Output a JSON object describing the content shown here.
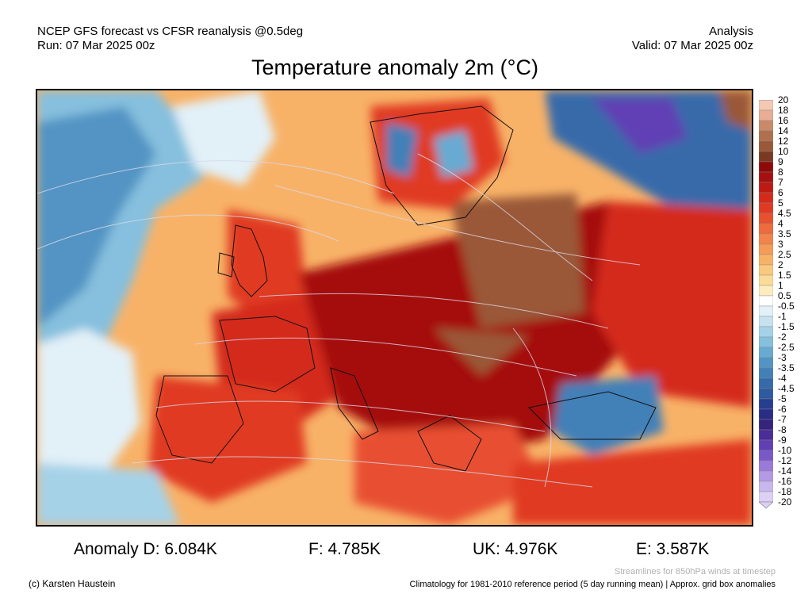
{
  "header": {
    "source_line": "NCEP GFS forecast vs CFSR reanalysis @0.5deg",
    "run_line": "Run: 07 Mar 2025 00z",
    "type_line": "Analysis",
    "valid_line": "Valid: 07 Mar 2025 00z"
  },
  "title": "Temperature anomaly 2m (°C)",
  "map": {
    "region": "Europe and North Atlantic"
  },
  "colorbar": {
    "levels": [
      "20",
      "18",
      "16",
      "14",
      "12",
      "10",
      "9",
      "8",
      "7",
      "6",
      "5",
      "4.5",
      "4",
      "3.5",
      "3",
      "2.5",
      "2",
      "1.5",
      "1",
      "0.5",
      "-0.5",
      "-1",
      "-1.5",
      "-2",
      "-2.5",
      "-3",
      "-3.5",
      "-4",
      "-4.5",
      "-5",
      "-6",
      "-7",
      "-8",
      "-9",
      "-10",
      "-12",
      "-14",
      "-16",
      "-18",
      "-20"
    ],
    "colors": [
      "#f4c9b3",
      "#e8ad93",
      "#c98a6a",
      "#b0704e",
      "#9a5838",
      "#7a3a22",
      "#8e0a0a",
      "#a51010",
      "#bd1a14",
      "#d42a1c",
      "#e03a22",
      "#e85030",
      "#ef6a3c",
      "#f3834a",
      "#f69a58",
      "#f8b268",
      "#fac87e",
      "#fbdb98",
      "#fdecbe",
      "#ffffff",
      "#e2f0f8",
      "#c6e2f0",
      "#a6d2e8",
      "#86c0de",
      "#68aad2",
      "#5294c4",
      "#4380b8",
      "#376aaa",
      "#2e5aa0",
      "#273f90",
      "#2a2d86",
      "#36237c",
      "#4a2d98",
      "#6040b4",
      "#7a58c8",
      "#9a7ad8",
      "#b29ae4",
      "#c8b6ee",
      "#dcd0f4"
    ]
  },
  "stats": {
    "d": "Anomaly D: 6.084K",
    "f": "F: 4.785K",
    "uk": "UK: 4.976K",
    "e": "E: 3.587K"
  },
  "footer": {
    "streamlines": "Streamlines for 850hPa winds at timestep",
    "copyright": "(c) Karsten Haustein",
    "climatology": "Climatology for 1981-2010 reference period (5 day running mean) | Approx. grid box anomalies"
  }
}
